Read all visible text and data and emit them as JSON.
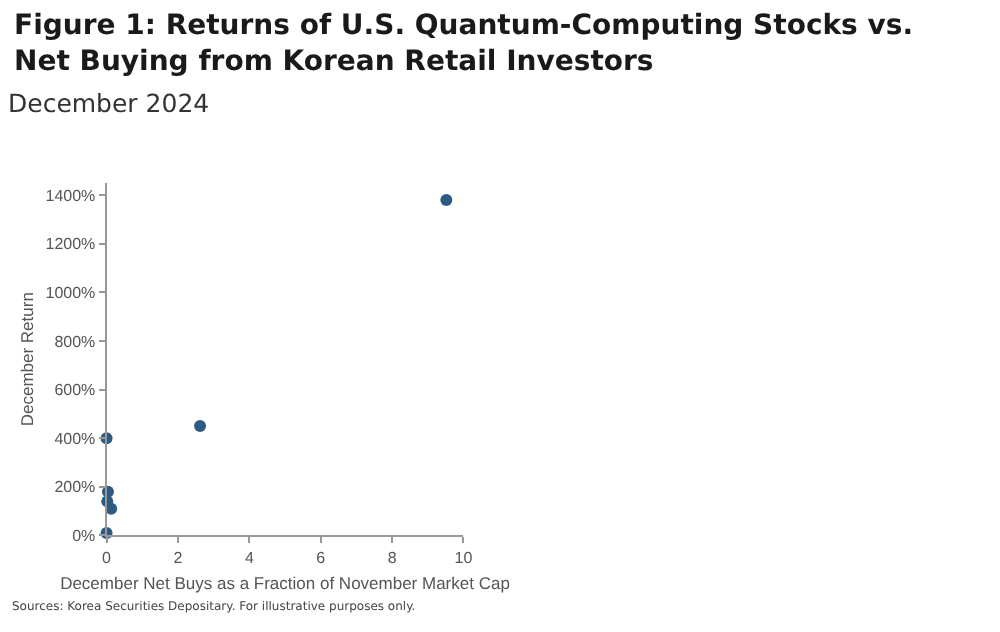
{
  "chart_data": {
    "type": "scatter",
    "title": "Figure 1: Returns of U.S. Quantum-Computing Stocks vs. Net Buying from Korean Retail Investors",
    "subtitle": "December 2024",
    "xlabel": "December Net Buys as a Fraction of November Market Cap",
    "ylabel": "December Return",
    "annotations": [
      "Sources: Korea Securities Depositary. For illustrative purposes only."
    ],
    "series": [
      {
        "color": "#2e5b82",
        "x": [
          0,
          2.62,
          9.52,
          0.04,
          0.02,
          0.13,
          0
        ],
        "values": [
          400,
          450,
          1380,
          180,
          140,
          110,
          10
        ]
      }
    ],
    "xlim": [
      0,
      10
    ],
    "xticks": [
      0,
      2,
      4,
      6,
      8,
      10
    ],
    "ylim": [
      0,
      1450
    ],
    "yticks": [
      {
        "value": 0,
        "label": "0%"
      },
      {
        "value": 200,
        "label": "200%"
      },
      {
        "value": 400,
        "label": "400%"
      },
      {
        "value": 600,
        "label": "600%"
      },
      {
        "value": 800,
        "label": "800%"
      },
      {
        "value": 1000,
        "label": "1000%"
      },
      {
        "value": 1200,
        "label": "1200%"
      },
      {
        "value": 1400,
        "label": "1400%"
      }
    ],
    "marker": "circle"
  }
}
